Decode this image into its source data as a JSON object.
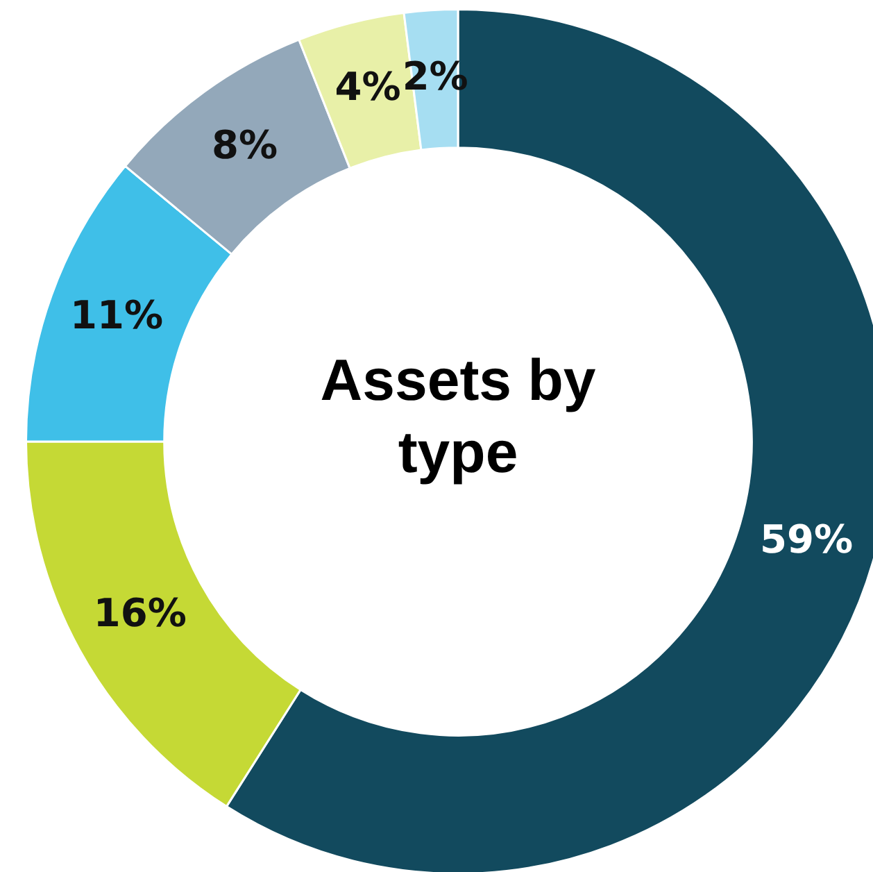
{
  "chart_data": {
    "type": "donut",
    "title": "Assets by type",
    "categories": [
      null,
      null,
      null,
      null,
      null,
      null
    ],
    "values": [
      59,
      16,
      11,
      8,
      4,
      2
    ],
    "value_labels": [
      "59%",
      "16%",
      "11%",
      "8%",
      "4%",
      "2%"
    ],
    "colors": [
      "#124a5e",
      "#c5d935",
      "#3fbfe8",
      "#93a8ba",
      "#e8f0a8",
      "#a6def2"
    ],
    "legend": false
  }
}
